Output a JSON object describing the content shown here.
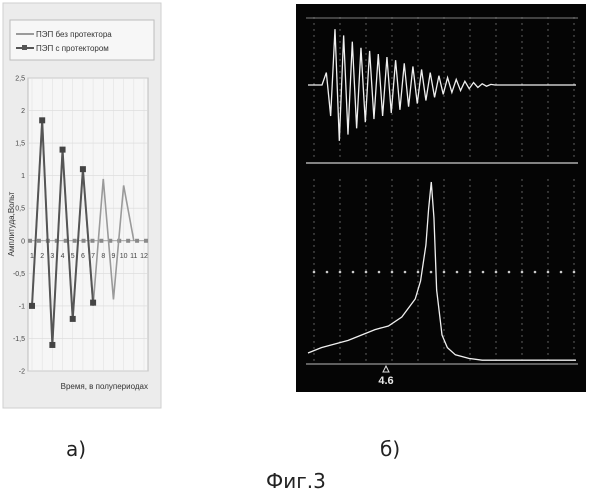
{
  "captions": {
    "a": "а)",
    "b": "б)",
    "figure": "Фиг.3"
  },
  "chart_data": [
    {
      "type": "line",
      "ylabel": "Амплитуда,Вольт",
      "xlabel": "Время, в полупериодах",
      "ylim": [
        -2,
        2.5
      ],
      "yticks": [
        "2,5",
        "2",
        "1,5",
        "1",
        "0,5",
        "0",
        "-0,5",
        "-1",
        "-1,5",
        "-2"
      ],
      "ytick_values": [
        2.5,
        2,
        1.5,
        1,
        0.5,
        0,
        -0.5,
        -1,
        -1.5,
        -2
      ],
      "categories": [
        "1",
        "2",
        "3",
        "4",
        "5",
        "6",
        "7",
        "8",
        "9",
        "10",
        "11",
        "12"
      ],
      "legend_position": "top",
      "grid": true,
      "series": [
        {
          "name": "ПЭП без протектора",
          "color": "#9a9a9a",
          "x": [
            1,
            2,
            3,
            4,
            5,
            6,
            7,
            8,
            9,
            10,
            11
          ],
          "y": [
            -1.0,
            1.85,
            -1.6,
            1.4,
            -1.2,
            1.1,
            -1.0,
            0.95,
            -0.9,
            0.85,
            0.0
          ]
        },
        {
          "name": "ПЭП с протектором",
          "color": "#555555",
          "x": [
            1,
            2,
            3,
            4,
            5,
            6,
            7
          ],
          "y": [
            -1.0,
            1.85,
            -1.6,
            1.4,
            -1.2,
            1.1,
            -0.95
          ]
        }
      ],
      "baseline_markers_y": 0
    },
    {
      "type": "line",
      "title": "",
      "annotations": [
        "4.6"
      ],
      "grid": true,
      "series": [
        {
          "name": "",
          "description": "time signal",
          "color": "#ffffff",
          "y": [
            0,
            0.2,
            -0.5,
            0.9,
            -0.9,
            0.8,
            -0.8,
            0.7,
            -0.7,
            0.6,
            -0.6,
            0.55,
            -0.55,
            0.5,
            -0.5,
            0.45,
            -0.45,
            0.4,
            -0.4,
            0.35,
            -0.35,
            0.3,
            -0.3,
            0.25,
            -0.25,
            0.2,
            -0.2,
            0.15,
            -0.15,
            0.12,
            -0.12,
            0.09,
            -0.09,
            0.06,
            -0.06,
            0.04,
            -0.04,
            0.02,
            -0.02,
            0.01,
            0,
            0,
            0,
            0,
            0
          ]
        },
        {
          "name": "",
          "description": "spectrum",
          "color": "#ffffff",
          "x": [
            0,
            0.5,
            1,
            1.5,
            2,
            2.5,
            3,
            3.5,
            4,
            4.2,
            4.4,
            4.5,
            4.6,
            4.7,
            4.8,
            5,
            5.2,
            5.5,
            6,
            6.5,
            7,
            7.5,
            8,
            8.5,
            9,
            9.5,
            10
          ],
          "y": [
            0.05,
            0.08,
            0.1,
            0.12,
            0.15,
            0.18,
            0.2,
            0.25,
            0.35,
            0.45,
            0.65,
            0.85,
            1.0,
            0.8,
            0.4,
            0.15,
            0.08,
            0.04,
            0.02,
            0.01,
            0.01,
            0.01,
            0.01,
            0.01,
            0.01,
            0.01,
            0.01
          ]
        }
      ]
    }
  ]
}
